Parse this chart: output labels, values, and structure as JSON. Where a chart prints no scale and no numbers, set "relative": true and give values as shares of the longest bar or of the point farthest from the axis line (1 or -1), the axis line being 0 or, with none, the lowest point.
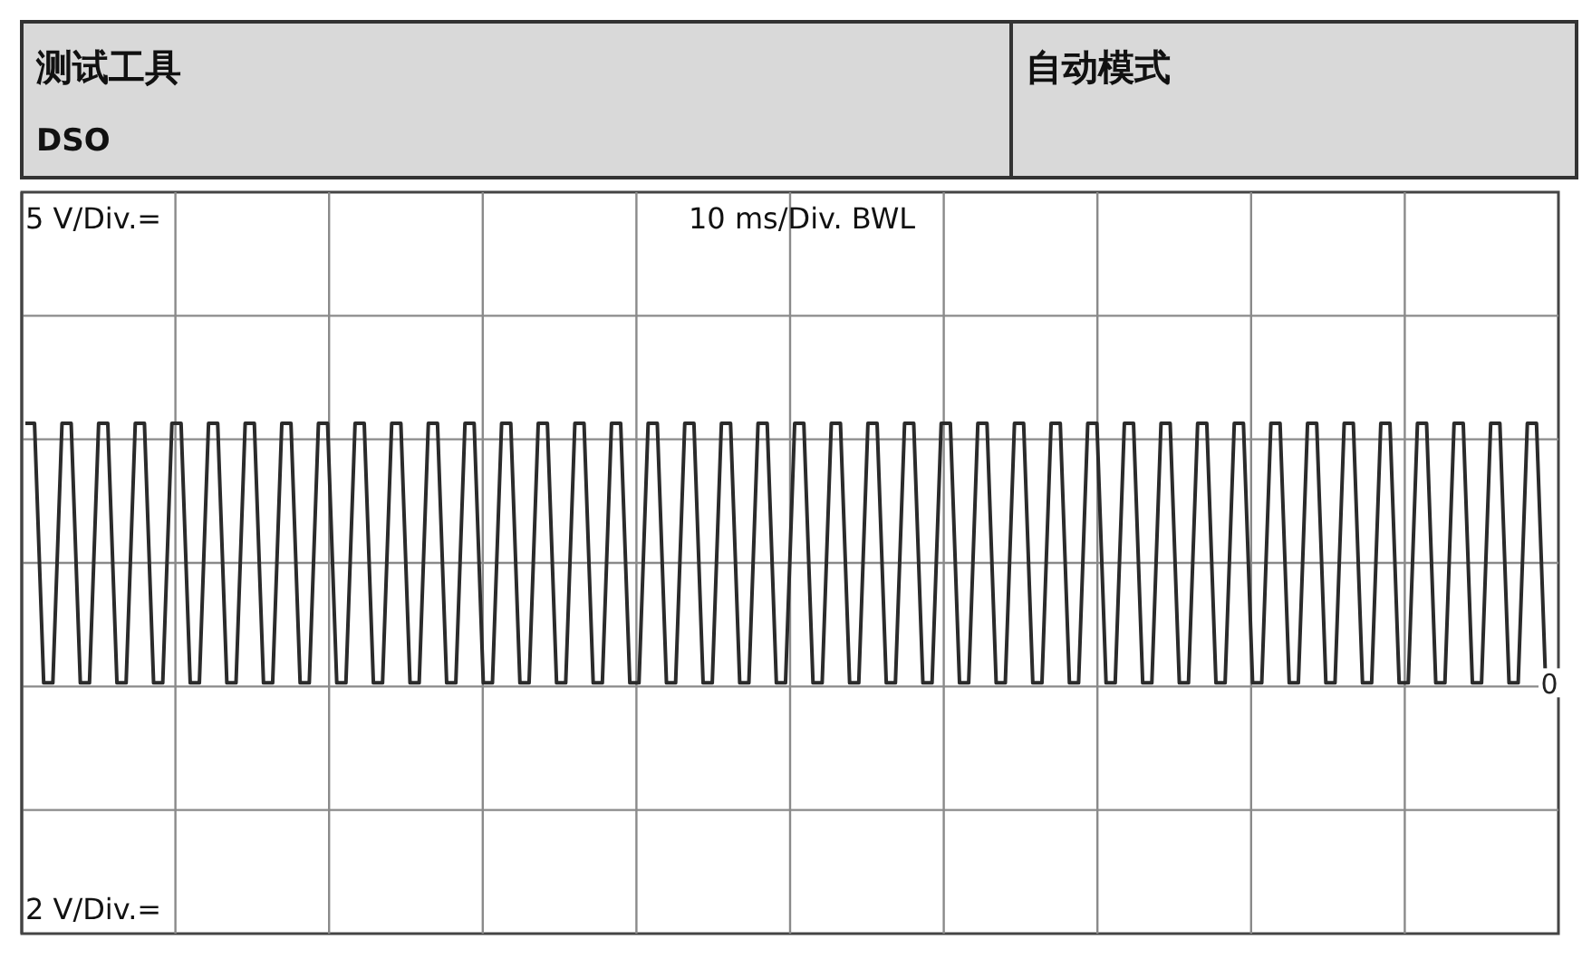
{
  "chart_data": {
    "type": "line",
    "title": "测试工具",
    "subtitle": "DSO",
    "annotations": [
      "自动模式",
      "0",
      "5 V/Div.=",
      "10 ms/Div. BWL",
      "2 V/Div.="
    ],
    "relative": true,
    "grid": true,
    "categories": [
      null,
      null,
      null,
      null,
      null,
      null,
      null,
      null,
      null,
      null,
      null,
      null,
      null,
      null,
      null,
      null,
      null,
      null,
      null,
      null,
      null,
      null,
      null,
      null,
      null,
      null,
      null,
      null,
      null,
      null,
      null,
      null,
      null,
      null,
      null,
      null,
      null,
      null,
      null,
      null,
      null,
      null,
      null,
      null,
      null,
      null,
      null,
      null,
      null,
      null,
      null,
      null,
      null,
      null,
      null,
      null,
      null,
      null,
      null,
      null,
      null,
      null,
      null,
      null,
      null,
      null,
      null,
      null,
      null,
      null,
      null,
      null,
      null,
      null,
      null,
      null,
      null,
      null,
      null,
      null,
      null,
      null,
      null,
      null,
      null,
      null,
      null,
      null,
      null,
      null,
      null,
      null,
      null,
      null,
      null,
      null,
      null,
      null,
      null,
      null,
      null,
      null,
      null,
      null,
      null,
      null,
      null,
      null,
      null,
      null,
      null,
      null,
      null,
      null,
      null,
      null,
      null,
      null,
      null,
      null,
      null,
      null,
      null,
      null,
      null,
      null,
      null,
      null,
      null,
      null,
      null,
      null,
      null,
      null,
      null,
      null,
      null,
      null,
      null,
      null,
      null,
      null,
      null,
      null,
      null,
      null,
      null,
      null,
      null,
      null,
      null,
      null,
      null,
      null,
      null,
      null,
      null,
      null,
      null,
      null,
      null,
      null,
      null,
      null,
      null,
      null,
      null,
      null
    ],
    "series": [
      {
        "color": "#2b2b2b",
        "values": [
          1,
          1,
          0,
          0,
          1,
          1,
          0,
          0,
          1,
          1,
          0,
          0,
          1,
          1,
          0,
          0,
          1,
          1,
          0,
          0,
          1,
          1,
          0,
          0,
          1,
          1,
          0,
          0,
          1,
          1,
          0,
          0,
          1,
          1,
          0,
          0,
          1,
          1,
          0,
          0,
          1,
          1,
          0,
          0,
          1,
          1,
          0,
          0,
          1,
          1,
          0,
          0,
          1,
          1,
          0,
          0,
          1,
          1,
          0,
          0,
          1,
          1,
          0,
          0,
          1,
          1,
          0,
          0,
          1,
          1,
          0,
          0,
          1,
          1,
          0,
          0,
          1,
          1,
          0,
          0,
          1,
          1,
          0,
          0,
          1,
          1,
          0,
          0,
          1,
          1,
          0,
          0,
          1,
          1,
          0,
          0,
          1,
          1,
          0,
          0,
          1,
          1,
          0,
          0,
          1,
          1,
          0,
          0,
          1,
          1,
          0,
          0,
          1,
          1,
          0,
          0,
          1,
          1,
          0,
          0,
          1,
          1,
          0,
          0,
          1,
          1,
          0,
          0,
          1,
          1,
          0,
          0,
          1,
          1,
          0,
          0,
          1,
          1,
          0,
          0,
          1,
          1,
          0,
          0,
          1,
          1,
          0,
          0,
          1,
          1,
          0,
          0,
          1,
          1,
          0,
          0,
          1,
          1,
          0,
          0,
          1,
          1,
          0,
          0,
          1,
          1,
          0,
          0
        ]
      }
    ]
  }
}
